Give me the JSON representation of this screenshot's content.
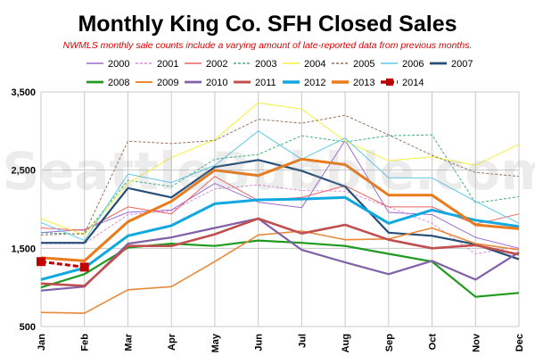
{
  "chart_data": {
    "type": "line",
    "title": "Monthly King Co. SFH Closed Sales",
    "subtitle": "NWMLS monthly sale counts include a varying amount of late-reported  data from previous months.",
    "watermark": "SeattleBubble.com",
    "categories": [
      "Jan",
      "Feb",
      "Mar",
      "Apr",
      "May",
      "Jun",
      "Jul",
      "Aug",
      "Sep",
      "Oct",
      "Nov",
      "Dec"
    ],
    "ylim": [
      500,
      3500
    ],
    "yticks": [
      500,
      1500,
      2500,
      3500
    ],
    "ytick_labels": [
      "500",
      "1,500",
      "2,500",
      "3,500"
    ],
    "grid": true,
    "legend_position": "top",
    "series": [
      {
        "name": "2000",
        "color": "#9b6bd0",
        "dash": "",
        "width": 1,
        "values": [
          1700,
          1740,
          1960,
          1990,
          2330,
          2090,
          2020,
          2880,
          1960,
          1930,
          1640,
          1500
        ]
      },
      {
        "name": "2001",
        "color": "#e08ad8",
        "dash": "3,2",
        "width": 1,
        "values": [
          1560,
          1560,
          1930,
          1980,
          2260,
          2310,
          2240,
          2230,
          2030,
          1820,
          1430,
          1520
        ]
      },
      {
        "name": "2002",
        "color": "#f06060",
        "dash": "",
        "width": 1,
        "values": [
          1760,
          1730,
          2030,
          1940,
          2420,
          2110,
          2150,
          2300,
          2030,
          2030,
          1810,
          1940
        ]
      },
      {
        "name": "2003",
        "color": "#40b080",
        "dash": "3,2",
        "width": 1,
        "values": [
          1700,
          1680,
          2370,
          2290,
          2640,
          2700,
          2940,
          2860,
          2940,
          2950,
          2080,
          2160
        ]
      },
      {
        "name": "2004",
        "color": "#f5f03c",
        "dash": "",
        "width": 1,
        "values": [
          1880,
          1670,
          2330,
          2660,
          2890,
          3360,
          3280,
          2870,
          2620,
          2670,
          2560,
          2830
        ]
      },
      {
        "name": "2005",
        "color": "#9a7058",
        "dash": "3,2",
        "width": 1,
        "values": [
          1670,
          1690,
          2870,
          2840,
          2880,
          3150,
          3100,
          3200,
          2950,
          2690,
          2470,
          2420
        ]
      },
      {
        "name": "2006",
        "color": "#60c8e8",
        "dash": "",
        "width": 1,
        "values": [
          1830,
          1600,
          2450,
          2340,
          2560,
          3000,
          2640,
          2910,
          2400,
          2400,
          2100,
          1820
        ]
      },
      {
        "name": "2007",
        "color": "#254e78",
        "dash": "",
        "width": 2.2,
        "values": [
          1570,
          1570,
          2270,
          2150,
          2540,
          2630,
          2490,
          2290,
          1700,
          1660,
          1550,
          1360
        ]
      },
      {
        "name": "2008",
        "color": "#1e9a1e",
        "dash": "",
        "width": 2.2,
        "values": [
          1000,
          1170,
          1510,
          1560,
          1530,
          1600,
          1570,
          1530,
          1430,
          1330,
          880,
          930
        ]
      },
      {
        "name": "2009",
        "color": "#e88a3a",
        "dash": "",
        "width": 1.6,
        "values": [
          680,
          670,
          970,
          1010,
          1330,
          1670,
          1720,
          1610,
          1620,
          1760,
          1560,
          1480
        ]
      },
      {
        "name": "2010",
        "color": "#8060a8",
        "dash": "",
        "width": 2.2,
        "values": [
          960,
          1010,
          1560,
          1640,
          1760,
          1880,
          1480,
          1320,
          1170,
          1340,
          1100,
          1450
        ]
      },
      {
        "name": "2011",
        "color": "#c05050",
        "dash": "",
        "width": 2.6,
        "values": [
          1050,
          1020,
          1530,
          1530,
          1680,
          1880,
          1690,
          1800,
          1610,
          1500,
          1540,
          1420
        ]
      },
      {
        "name": "2012",
        "color": "#10a8e0",
        "dash": "",
        "width": 3,
        "values": [
          1100,
          1250,
          1660,
          1790,
          2070,
          2120,
          2130,
          2150,
          1820,
          1990,
          1860,
          1780
        ]
      },
      {
        "name": "2013",
        "color": "#ea7a1a",
        "dash": "",
        "width": 3,
        "values": [
          1380,
          1340,
          1840,
          2100,
          2500,
          2430,
          2640,
          2570,
          2180,
          2180,
          1800,
          1750
        ]
      },
      {
        "name": "2014",
        "color": "#c00000",
        "dash": "6,3",
        "width": 3,
        "marker": "square",
        "values": [
          1330,
          1260,
          null,
          null,
          null,
          null,
          null,
          null,
          null,
          null,
          null,
          null
        ]
      }
    ]
  }
}
